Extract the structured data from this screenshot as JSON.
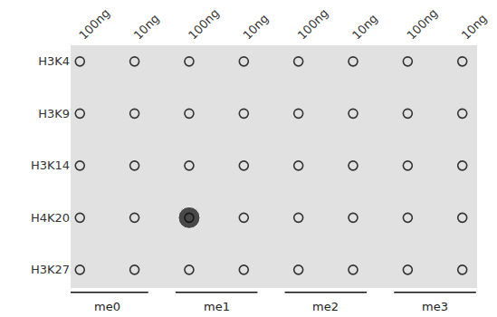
{
  "chart_data": {
    "type": "dot_blot",
    "groups": [
      "me0",
      "me1",
      "me2",
      "me3"
    ],
    "amounts": [
      "100ng",
      "10ng"
    ],
    "rows": [
      "H3K4",
      "H3K9",
      "H3K14",
      "H4K20",
      "H3K27"
    ],
    "cells": [
      [
        0,
        0,
        0,
        0,
        0,
        0,
        0,
        0
      ],
      [
        0,
        0,
        0,
        0,
        0,
        0,
        0,
        0
      ],
      [
        0,
        0,
        0,
        0,
        0,
        0,
        0,
        0
      ],
      [
        0,
        0,
        1,
        0,
        0,
        0,
        0,
        0
      ],
      [
        0,
        0,
        0,
        0,
        0,
        0,
        0,
        0
      ]
    ],
    "tick_labels": true
  }
}
